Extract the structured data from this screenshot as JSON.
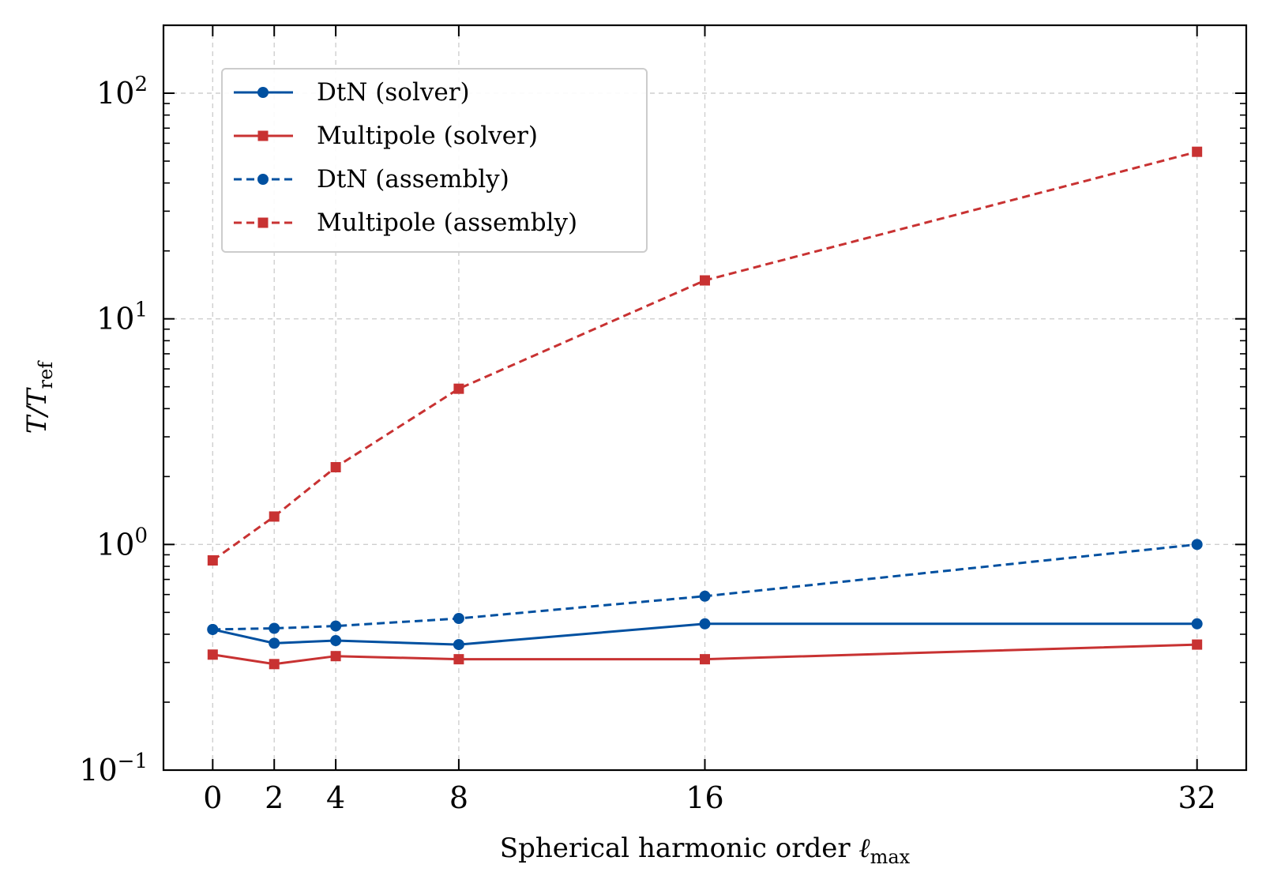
{
  "chart_data": {
    "type": "line",
    "x": [
      0,
      2,
      4,
      8,
      16,
      32
    ],
    "xticks": [
      "0",
      "2",
      "4",
      "8",
      "16",
      "32"
    ],
    "xlim": [
      -1.6,
      33.6
    ],
    "xlabel": {
      "text": "Spherical harmonic order ",
      "symbol": "ℓ",
      "subscript": "max"
    },
    "ylabel": {
      "text": "T/T",
      "subscript": "ref"
    },
    "yscale": "log",
    "ylim": [
      0.1,
      200
    ],
    "yticks": [
      {
        "value": 0.1,
        "base": "10",
        "exponent": "−1"
      },
      {
        "value": 1,
        "base": "10",
        "exponent": "0"
      },
      {
        "value": 10,
        "base": "10",
        "exponent": "1"
      },
      {
        "value": 100,
        "base": "10",
        "exponent": "2"
      }
    ],
    "grid": true,
    "legend_position": "top-left",
    "series": [
      {
        "name": "DtN (solver)",
        "color": "#0050a0",
        "linestyle": "solid",
        "marker": "circle",
        "values": [
          0.42,
          0.365,
          0.375,
          0.36,
          0.445,
          0.445
        ]
      },
      {
        "name": "Multipole (solver)",
        "color": "#c83232",
        "linestyle": "solid",
        "marker": "square",
        "values": [
          0.325,
          0.295,
          0.32,
          0.31,
          0.31,
          0.36
        ]
      },
      {
        "name": "DtN (assembly)",
        "color": "#0050a0",
        "linestyle": "dashed",
        "marker": "circle",
        "values": [
          0.42,
          0.425,
          0.435,
          0.47,
          0.59,
          1.0
        ]
      },
      {
        "name": "Multipole (assembly)",
        "color": "#c83232",
        "linestyle": "dashed",
        "marker": "square",
        "values": [
          0.85,
          1.33,
          2.2,
          4.9,
          14.8,
          55
        ]
      }
    ]
  }
}
